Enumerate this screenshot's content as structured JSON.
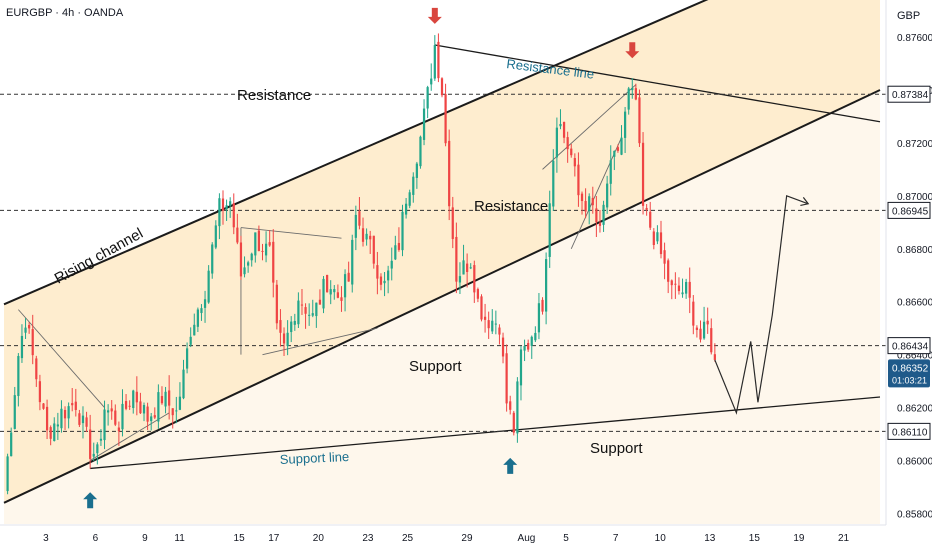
{
  "header": {
    "symbol": "EURGBP · 4h · OANDA",
    "currency": "GBP"
  },
  "colors": {
    "up": "#22a68b",
    "down": "#ef4444",
    "channel_fill": "#fde7bf",
    "blue_label": "#1a6f8e",
    "arrow_blue": "#1a6f8e",
    "arrow_red": "#d9453e",
    "price_tag": "#1f5a8a"
  },
  "chart_data": {
    "type": "candlestick",
    "title": "",
    "xlabel": "",
    "ylabel": "",
    "x_ticks": [
      "3",
      "6",
      "9",
      "11",
      "15",
      "17",
      "20",
      "23",
      "25",
      "29",
      "Aug",
      "5",
      "7",
      "10",
      "13",
      "15",
      "19",
      "21"
    ],
    "y_ticks": [
      "0.87600",
      "0.87400",
      "0.87200",
      "0.87000",
      "0.86800",
      "0.86600",
      "0.86400",
      "0.86200",
      "0.86000",
      "0.85800"
    ],
    "ylim": [
      0.8576,
      0.8774
    ],
    "xlim": [
      0,
      244
    ],
    "grid": false,
    "price_levels": [
      {
        "label": "0.87384",
        "value": 0.87384
      },
      {
        "label": "0.86945",
        "value": 0.86945
      },
      {
        "label": "0.86434",
        "value": 0.86434
      },
      {
        "label": "0.86110",
        "value": 0.8611
      }
    ],
    "current_price": {
      "value": 0.86352,
      "label": "0.86352",
      "countdown": "01:03:21"
    },
    "anchors": [
      [
        0,
        0.8588
      ],
      [
        4,
        0.864
      ],
      [
        6,
        0.8654
      ],
      [
        10,
        0.8624
      ],
      [
        12,
        0.861
      ],
      [
        16,
        0.8618
      ],
      [
        20,
        0.8622
      ],
      [
        24,
        0.8604
      ],
      [
        26,
        0.8602
      ],
      [
        28,
        0.862
      ],
      [
        32,
        0.8614
      ],
      [
        36,
        0.8626
      ],
      [
        40,
        0.8616
      ],
      [
        44,
        0.8624
      ],
      [
        48,
        0.8618
      ],
      [
        50,
        0.8632
      ],
      [
        52,
        0.865
      ],
      [
        56,
        0.8665
      ],
      [
        60,
        0.8695
      ],
      [
        63,
        0.8698
      ],
      [
        66,
        0.867
      ],
      [
        70,
        0.8684
      ],
      [
        74,
        0.8678
      ],
      [
        76,
        0.8648
      ],
      [
        78,
        0.8642
      ],
      [
        82,
        0.8662
      ],
      [
        86,
        0.8654
      ],
      [
        90,
        0.8668
      ],
      [
        93,
        0.8662
      ],
      [
        96,
        0.8668
      ],
      [
        98,
        0.8692
      ],
      [
        102,
        0.868
      ],
      [
        106,
        0.8666
      ],
      [
        110,
        0.8682
      ],
      [
        112,
        0.87
      ],
      [
        116,
        0.8722
      ],
      [
        118,
        0.8738
      ],
      [
        120,
        0.8757
      ],
      [
        122,
        0.874
      ],
      [
        124,
        0.87
      ],
      [
        126,
        0.867
      ],
      [
        130,
        0.8676
      ],
      [
        132,
        0.866
      ],
      [
        134,
        0.8654
      ],
      [
        138,
        0.8652
      ],
      [
        140,
        0.8622
      ],
      [
        142,
        0.8612
      ],
      [
        144,
        0.864
      ],
      [
        146,
        0.8644
      ],
      [
        150,
        0.866
      ],
      [
        152,
        0.87
      ],
      [
        154,
        0.873
      ],
      [
        158,
        0.8715
      ],
      [
        160,
        0.87
      ],
      [
        164,
        0.8695
      ],
      [
        166,
        0.8685
      ],
      [
        168,
        0.8705
      ],
      [
        172,
        0.8722
      ],
      [
        174,
        0.8738
      ],
      [
        176,
        0.8736
      ],
      [
        178,
        0.8695
      ],
      [
        182,
        0.8682
      ],
      [
        186,
        0.8664
      ],
      [
        190,
        0.8664
      ],
      [
        194,
        0.8646
      ],
      [
        196,
        0.865
      ],
      [
        198,
        0.8638
      ]
    ],
    "projection": [
      [
        198,
        0.8638
      ],
      [
        204,
        0.8618
      ],
      [
        208,
        0.8645
      ],
      [
        210,
        0.8622
      ],
      [
        214,
        0.8655
      ],
      [
        218,
        0.87
      ],
      [
        224,
        0.8697
      ]
    ],
    "trendlines": [
      {
        "name": "rising-channel-upper",
        "points": [
          [
            0,
            0.8659
          ],
          [
            204,
            0.8779
          ]
        ]
      },
      {
        "name": "rising-channel-lower",
        "points": [
          [
            0,
            0.8584
          ],
          [
            244,
            0.874
          ]
        ]
      },
      {
        "name": "support-line",
        "points": [
          [
            24,
            0.8597
          ],
          [
            244,
            0.8624
          ]
        ]
      },
      {
        "name": "resistance-line",
        "points": [
          [
            120,
            0.8757
          ],
          [
            244,
            0.8728
          ]
        ]
      }
    ],
    "annotations": {
      "rising_channel": "Rising channel",
      "resistance_1": "Resistance",
      "resistance_2": "Resistance",
      "resistance_line": "Resistance line",
      "support_1": "Support",
      "support_2": "Support",
      "support_line": "Support line"
    },
    "markers": [
      {
        "kind": "down-arrow",
        "x": 120,
        "y": 0.8765
      },
      {
        "kind": "down-arrow",
        "x": 175,
        "y": 0.8752
      },
      {
        "kind": "up-arrow",
        "x": 24,
        "y": 0.8588
      },
      {
        "kind": "up-arrow",
        "x": 141,
        "y": 0.8601
      }
    ]
  }
}
